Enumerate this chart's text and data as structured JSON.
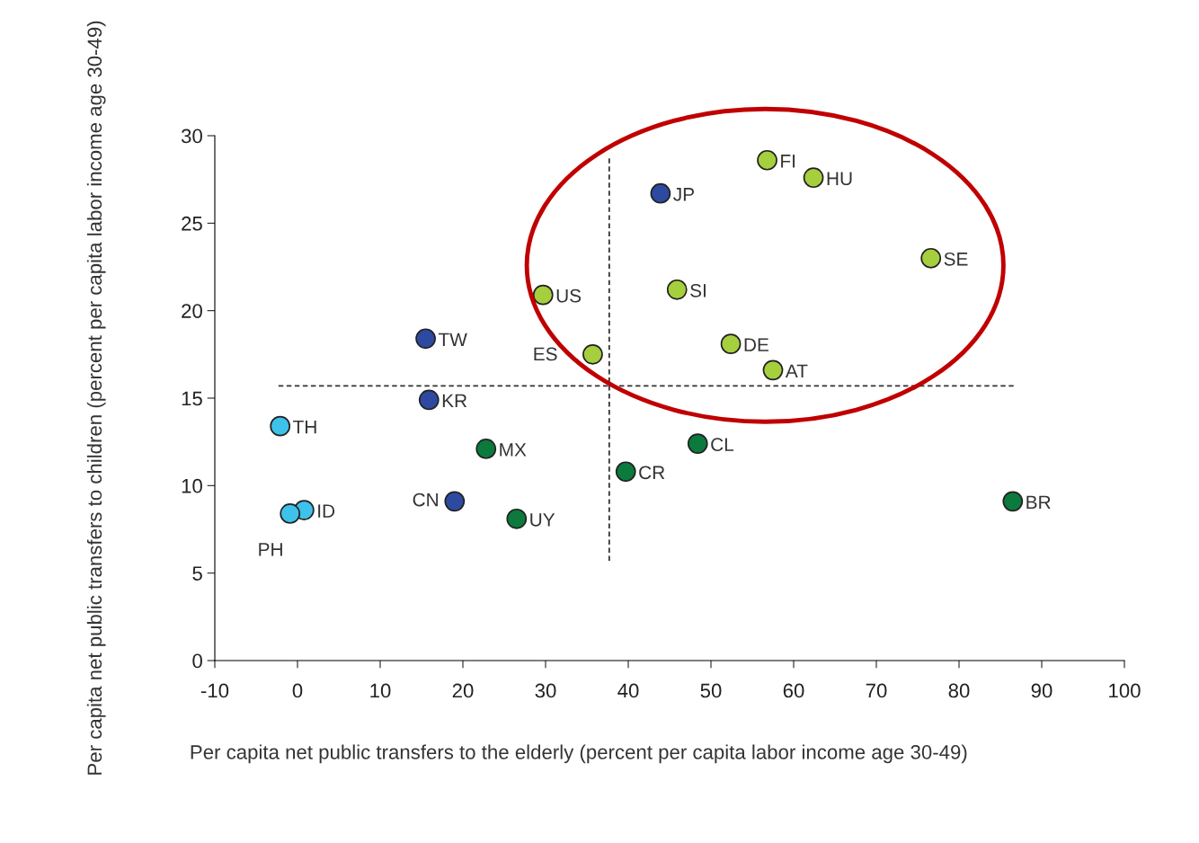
{
  "chart_data": {
    "type": "scatter",
    "xlabel": "Per capita net public transfers to the elderly (percent per capita labor income age 30-49)",
    "ylabel": "Per capita net public transfers to children (percent per capita labor income age 30-49)",
    "series": [
      {
        "color": "#a6cf3e",
        "x": [
          56.8,
          62.4,
          76.6,
          29.7,
          45.9,
          52.4,
          35.7,
          57.5
        ],
        "values": [
          28.6,
          27.6,
          23.0,
          20.9,
          21.2,
          18.1,
          17.5,
          16.6
        ]
      },
      {
        "color": "#2e4aa0",
        "x": [
          43.9,
          15.5,
          15.9,
          19.0
        ],
        "values": [
          26.7,
          18.4,
          14.9,
          9.1
        ]
      },
      {
        "color": "#0b7a3c",
        "x": [
          48.4,
          22.8,
          39.7,
          86.5,
          26.5
        ],
        "values": [
          12.4,
          12.1,
          10.8,
          9.1,
          8.1
        ]
      },
      {
        "color": "#3ec1ea",
        "x": [
          -2.1,
          0.8,
          -0.9
        ],
        "values": [
          13.4,
          8.6,
          8.4
        ]
      }
    ],
    "annotations": [
      {
        "text": "FI",
        "x": 56.8,
        "y": 28.6
      },
      {
        "text": "HU",
        "x": 62.4,
        "y": 27.6
      },
      {
        "text": "SE",
        "x": 76.6,
        "y": 23.0
      },
      {
        "text": "US",
        "x": 29.7,
        "y": 20.9
      },
      {
        "text": "SI",
        "x": 45.9,
        "y": 21.2
      },
      {
        "text": "DE",
        "x": 52.4,
        "y": 18.1
      },
      {
        "text": "ES",
        "x": 35.7,
        "y": 17.5
      },
      {
        "text": "AT",
        "x": 57.5,
        "y": 16.6
      },
      {
        "text": "JP",
        "x": 43.9,
        "y": 26.7
      },
      {
        "text": "TW",
        "x": 15.5,
        "y": 18.4
      },
      {
        "text": "KR",
        "x": 15.9,
        "y": 14.9
      },
      {
        "text": "CN",
        "x": 19.0,
        "y": 9.1
      },
      {
        "text": "CL",
        "x": 48.4,
        "y": 12.4
      },
      {
        "text": "MX",
        "x": 22.8,
        "y": 12.1
      },
      {
        "text": "CR",
        "x": 39.7,
        "y": 10.8
      },
      {
        "text": "BR",
        "x": 86.5,
        "y": 9.1
      },
      {
        "text": "UY",
        "x": 26.5,
        "y": 8.1
      },
      {
        "text": "TH",
        "x": -2.1,
        "y": 13.4
      },
      {
        "text": "ID",
        "x": 0.8,
        "y": 8.6
      },
      {
        "text": "PH",
        "x": -0.9,
        "y": 8.4
      }
    ],
    "ref_lines": [
      {
        "axis": "x",
        "value": 37.7,
        "color": "#333333",
        "line_style": "dashed"
      },
      {
        "axis": "y",
        "value": 15.7,
        "color": "#333333",
        "line_style": "dashed"
      }
    ],
    "xlim": [
      -10,
      100
    ],
    "xticks": [
      -10,
      0,
      10,
      20,
      30,
      40,
      50,
      60,
      70,
      80,
      90,
      100
    ],
    "ylim": [
      0,
      30
    ],
    "yticks": [
      0,
      5,
      10,
      15,
      20,
      25,
      30
    ],
    "marker": "circle",
    "grid": false,
    "legend": false
  }
}
